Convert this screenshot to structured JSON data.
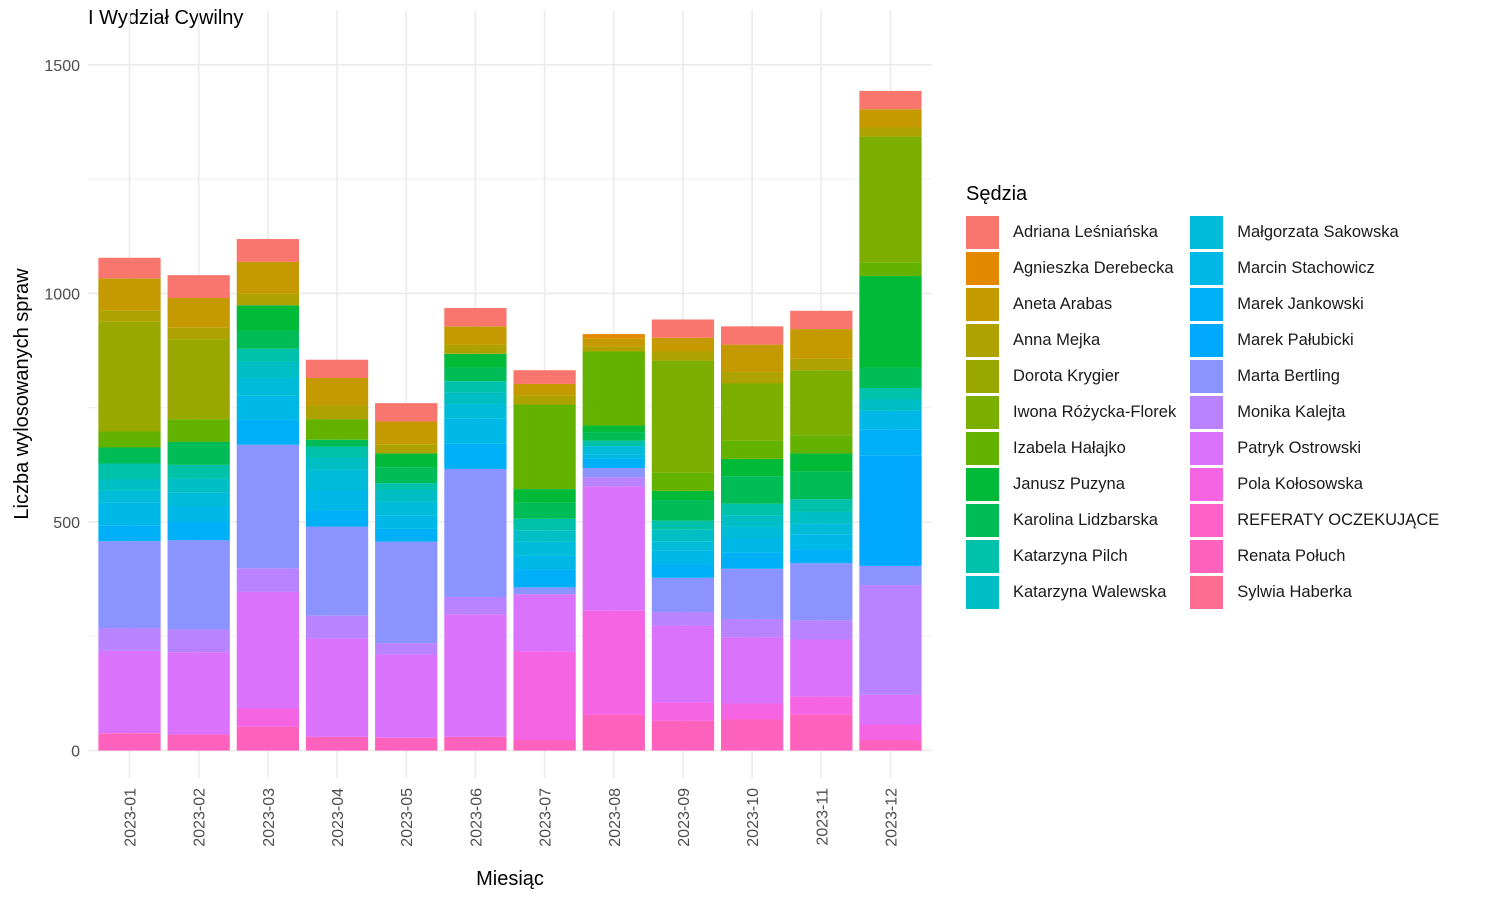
{
  "chart_data": {
    "type": "bar",
    "stacked": true,
    "title": "I Wydział Cywilny",
    "xlabel": "Miesiąc",
    "ylabel": "Liczba wylosowanych spraw",
    "ylim": [
      -60,
      1620
    ],
    "yticks": [
      0,
      500,
      1000,
      1500
    ],
    "grid": true,
    "legend_title": "Sędzia",
    "legend_position": "right",
    "categories": [
      "2023-01",
      "2023-02",
      "2023-03",
      "2023-04",
      "2023-05",
      "2023-06",
      "2023-07",
      "2023-08",
      "2023-09",
      "2023-10",
      "2023-11",
      "2023-12"
    ],
    "series": [
      {
        "name": "Sylwia Haberka",
        "color": "#FF6C91",
        "values": [
          0,
          0,
          0,
          0,
          0,
          0,
          0,
          0,
          0,
          0,
          0,
          0
        ]
      },
      {
        "name": "Renata Połuch",
        "color": "#FF62BC",
        "values": [
          38,
          35,
          52,
          30,
          28,
          30,
          22,
          78,
          65,
          68,
          78,
          22
        ]
      },
      {
        "name": "REFERATY OCZEKUJĄCE",
        "color": "#FF61C9",
        "values": [
          0,
          0,
          0,
          0,
          0,
          0,
          0,
          0,
          0,
          0,
          0,
          0
        ]
      },
      {
        "name": "Pola Kołosowska",
        "color": "#F564E3",
        "values": [
          0,
          0,
          40,
          0,
          0,
          0,
          195,
          228,
          40,
          35,
          40,
          35
        ]
      },
      {
        "name": "Patryk Ostrowski",
        "color": "#DB72FB",
        "values": [
          180,
          180,
          255,
          215,
          182,
          268,
          125,
          272,
          168,
          145,
          125,
          65
        ]
      },
      {
        "name": "Monika Kalejta",
        "color": "#B983FF",
        "values": [
          50,
          50,
          52,
          50,
          25,
          38,
          0,
          20,
          30,
          40,
          42,
          240
        ]
      },
      {
        "name": "Marta Bertling",
        "color": "#8B93FF",
        "values": [
          190,
          195,
          270,
          195,
          222,
          280,
          15,
          20,
          75,
          110,
          125,
          42
        ]
      },
      {
        "name": "Marek Pałubicki",
        "color": "#00A9FF",
        "values": [
          0,
          0,
          0,
          0,
          0,
          0,
          0,
          0,
          0,
          0,
          0,
          242
        ]
      },
      {
        "name": "Marek Jankowski",
        "color": "#00B0F6",
        "values": [
          35,
          40,
          55,
          35,
          28,
          55,
          40,
          20,
          30,
          35,
          30,
          57
        ]
      },
      {
        "name": "Marcin Stachowicz",
        "color": "#00B8E7",
        "values": [
          50,
          35,
          52,
          45,
          30,
          55,
          30,
          10,
          30,
          32,
          32,
          40
        ]
      },
      {
        "name": "Małgorzata Sakowska",
        "color": "#00BCD8",
        "values": [
          25,
          30,
          40,
          45,
          30,
          32,
          30,
          18,
          20,
          25,
          25,
          0
        ]
      },
      {
        "name": "Katarzyna Walewska",
        "color": "#00BFC4",
        "values": [
          25,
          30,
          35,
          25,
          25,
          25,
          25,
          0,
          25,
          25,
          25,
          25
        ]
      },
      {
        "name": "Katarzyna Pilch",
        "color": "#00C1AA",
        "values": [
          35,
          30,
          28,
          25,
          15,
          25,
          25,
          12,
          20,
          25,
          28,
          25
        ]
      },
      {
        "name": "Karolina Lidzbarska",
        "color": "#00BC56",
        "values": [
          35,
          50,
          40,
          15,
          35,
          30,
          35,
          18,
          45,
          60,
          60,
          45
        ]
      },
      {
        "name": "Janusz Puzyna",
        "color": "#00BA38",
        "values": [
          0,
          0,
          55,
          0,
          30,
          30,
          30,
          15,
          20,
          38,
          40,
          200
        ]
      },
      {
        "name": "Izabela Hałajko",
        "color": "#64B200",
        "values": [
          35,
          50,
          0,
          45,
          0,
          0,
          185,
          162,
          40,
          40,
          40,
          30
        ]
      },
      {
        "name": "Iwona Różycka-Florek",
        "color": "#7CAE00",
        "values": [
          0,
          0,
          0,
          0,
          0,
          0,
          0,
          0,
          245,
          125,
          142,
          275
        ]
      },
      {
        "name": "Dorota Krygier",
        "color": "#99A800",
        "values": [
          240,
          175,
          0,
          0,
          0,
          0,
          0,
          0,
          0,
          0,
          0,
          0
        ]
      },
      {
        "name": "Anna Mejka",
        "color": "#AEA200",
        "values": [
          25,
          25,
          25,
          30,
          20,
          20,
          20,
          10,
          20,
          25,
          25,
          20
        ]
      },
      {
        "name": "Aneta Arabas",
        "color": "#C49A00",
        "values": [
          70,
          65,
          70,
          60,
          50,
          40,
          25,
          18,
          30,
          60,
          65,
          40
        ]
      },
      {
        "name": "Agnieszka Derebecka",
        "color": "#E38900",
        "values": [
          0,
          0,
          0,
          0,
          0,
          0,
          0,
          10,
          0,
          0,
          0,
          0
        ]
      },
      {
        "name": "Adriana Leśniańska",
        "color": "#F8766D",
        "values": [
          45,
          50,
          50,
          40,
          40,
          40,
          30,
          0,
          40,
          40,
          40,
          40
        ]
      }
    ]
  }
}
